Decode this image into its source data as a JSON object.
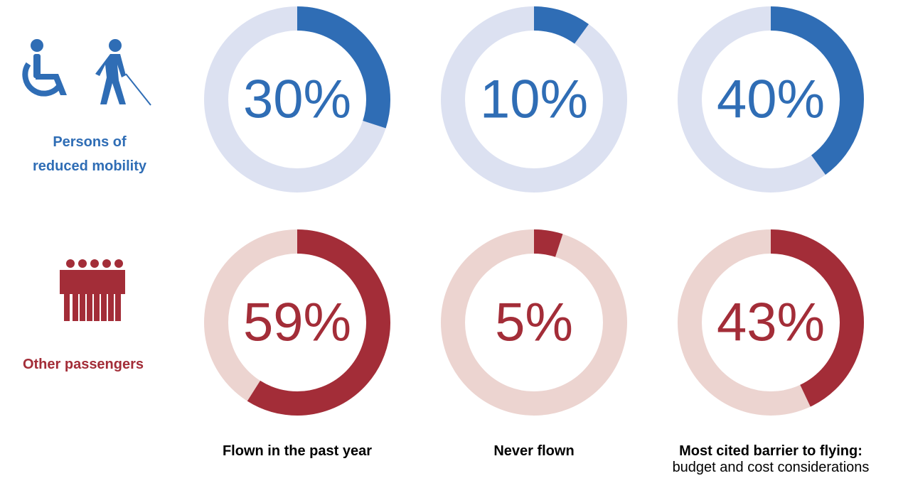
{
  "chart_data": {
    "type": "donut",
    "columns": [
      "Flown in the past year",
      "Never flown",
      "Most cited barrier to flying:"
    ],
    "column_subtitles": [
      "",
      "",
      "budget and cost considerations"
    ],
    "series": [
      {
        "name": "Persons of reduced mobility",
        "values": [
          30,
          10,
          40
        ],
        "labels": [
          "30%",
          "10%",
          "40%"
        ],
        "color": "#2f6db5",
        "track_color": "#dce1f1",
        "label_color": "#2f6db5"
      },
      {
        "name": "Other passengers",
        "values": [
          59,
          5,
          43
        ],
        "labels": [
          "59%",
          "5%",
          "43%"
        ],
        "color": "#a32d38",
        "track_color": "#ecd4d0",
        "label_color": "#a32d38"
      }
    ]
  },
  "group_labels": {
    "prm_line1": "Persons of",
    "prm_line2": "reduced mobility",
    "other": "Other passengers"
  },
  "icons": [
    "wheelchair-icon",
    "blind-person-icon",
    "group-of-people-icon"
  ]
}
